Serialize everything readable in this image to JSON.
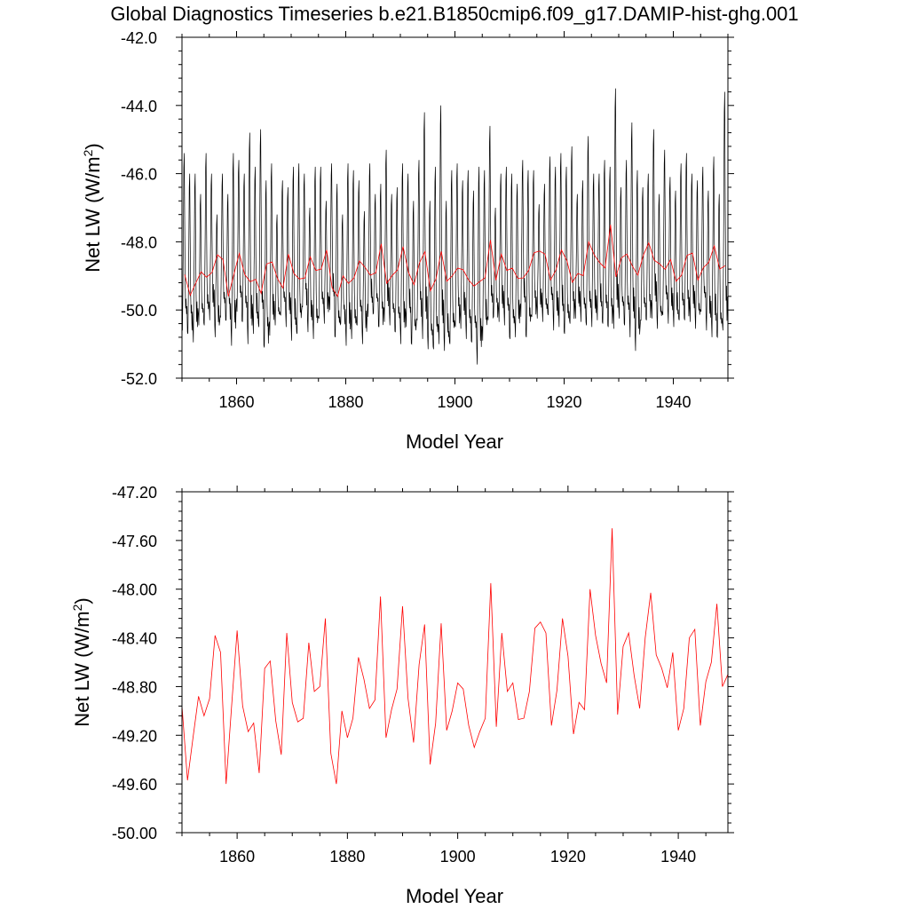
{
  "figure": {
    "title": "Global Diagnostics Timeseries b.e21.B1850cmip6.f09_g17.DAMIP-hist-ghg.001"
  },
  "colors": {
    "monthly_line": "#000000",
    "annual_line": "#ff0000",
    "axes": "#000000"
  },
  "chart_data": [
    {
      "type": "line",
      "ylabel_main": "Net LW (W/m",
      "ylabel_sup": "2",
      "ylabel_end": ")",
      "xlabel": "Model Year",
      "xlim": [
        1850,
        1950
      ],
      "ylim": [
        -52.0,
        -42.0
      ],
      "xticks": [
        1860,
        1880,
        1900,
        1920,
        1940
      ],
      "xtick_labels": [
        "1860",
        "1880",
        "1900",
        "1920",
        "1940"
      ],
      "yticks": [
        -52.0,
        -50.0,
        -48.0,
        -46.0,
        -44.0,
        -42.0
      ],
      "ytick_labels": [
        "-52.0",
        "-50.0",
        "-48.0",
        "-46.0",
        "-44.0",
        "-42.0"
      ],
      "series": [
        {
          "kind": "monthly",
          "color": "#000000",
          "description_of_peaks_years": [
            1850,
            1851,
            1852,
            1853,
            1854,
            1855,
            1856,
            1857,
            1858,
            1859,
            1860,
            1861,
            1862,
            1863,
            1864,
            1865,
            1866,
            1867,
            1868,
            1869,
            1870,
            1871,
            1872,
            1873,
            1874,
            1875,
            1876,
            1877,
            1878,
            1879,
            1880,
            1881,
            1882,
            1883,
            1884,
            1885,
            1886,
            1887,
            1888,
            1889,
            1890,
            1891,
            1892,
            1893,
            1894,
            1895,
            1896,
            1897,
            1898,
            1899,
            1900,
            1901,
            1902,
            1903,
            1904,
            1905,
            1906,
            1907,
            1908,
            1909,
            1910,
            1911,
            1912,
            1913,
            1914,
            1915,
            1916,
            1917,
            1918,
            1919,
            1920,
            1921,
            1922,
            1923,
            1924,
            1925,
            1926,
            1927,
            1928,
            1929,
            1930,
            1931,
            1932,
            1933,
            1934,
            1935,
            1936,
            1937,
            1938,
            1939,
            1940,
            1941,
            1942,
            1943,
            1944,
            1945,
            1946,
            1947,
            1948,
            1949
          ],
          "annual_max": [
            -45.4,
            -46.0,
            -46.0,
            -46.6,
            -45.4,
            -46.0,
            -47.2,
            -46.0,
            -46.6,
            -45.4,
            -45.6,
            -46.0,
            -44.8,
            -45.8,
            -44.7,
            -46.2,
            -45.7,
            -47.2,
            -46.2,
            -46.4,
            -45.8,
            -45.7,
            -46.0,
            -47.0,
            -45.8,
            -45.8,
            -46.8,
            -45.7,
            -46.3,
            -47.2,
            -45.7,
            -45.9,
            -46.2,
            -47.1,
            -45.7,
            -46.6,
            -46.3,
            -45.3,
            -46.6,
            -46.4,
            -45.7,
            -46.0,
            -46.8,
            -45.6,
            -44.2,
            -46.8,
            -45.8,
            -44.0,
            -46.8,
            -45.9,
            -45.7,
            -46.2,
            -45.9,
            -46.5,
            -45.8,
            -45.9,
            -44.6,
            -47.0,
            -46.0,
            -45.8,
            -46.0,
            -46.3,
            -45.6,
            -45.9,
            -45.9,
            -46.9,
            -46.3,
            -45.5,
            -45.8,
            -45.4,
            -45.8,
            -45.2,
            -46.6,
            -46.2,
            -44.9,
            -46.0,
            -46.0,
            -45.6,
            -45.8,
            -43.5,
            -46.4,
            -45.6,
            -44.5,
            -45.9,
            -46.4,
            -46.0,
            -44.7,
            -46.6,
            -45.3,
            -46.1,
            -46.5,
            -45.7,
            -45.4,
            -46.0,
            -46.2,
            -45.8,
            -46.5,
            -45.5,
            -46.6,
            -43.6
          ],
          "annual_min": [
            -50.8,
            -51.0,
            -51.0,
            -50.6,
            -50.7,
            -50.3,
            -50.9,
            -50.4,
            -50.6,
            -51.1,
            -50.2,
            -50.6,
            -51.0,
            -50.8,
            -50.7,
            -51.4,
            -50.8,
            -50.6,
            -50.4,
            -50.5,
            -51.0,
            -50.9,
            -50.2,
            -50.7,
            -51.0,
            -50.5,
            -50.4,
            -50.1,
            -51.0,
            -50.7,
            -51.1,
            -51.0,
            -50.7,
            -51.0,
            -50.3,
            -50.3,
            -50.8,
            -50.4,
            -50.6,
            -50.9,
            -51.0,
            -50.6,
            -51.2,
            -50.6,
            -50.9,
            -51.3,
            -51.4,
            -51.0,
            -51.3,
            -51.2,
            -50.8,
            -50.6,
            -51.0,
            -51.2,
            -51.6,
            -51.0,
            -50.5,
            -50.5,
            -50.4,
            -50.6,
            -51.1,
            -50.8,
            -50.3,
            -51.0,
            -50.5,
            -50.3,
            -50.5,
            -50.4,
            -50.6,
            -50.6,
            -50.9,
            -50.7,
            -50.3,
            -50.5,
            -50.7,
            -50.5,
            -50.4,
            -50.6,
            -50.8,
            -50.6,
            -50.4,
            -50.7,
            -50.8,
            -51.3,
            -50.5,
            -50.6,
            -50.3,
            -50.7,
            -50.4,
            -50.4,
            -50.6,
            -50.5,
            -50.6,
            -50.4,
            -50.7,
            -50.3,
            -50.6,
            -50.9,
            -51.0,
            -50.9
          ]
        },
        {
          "kind": "annual",
          "color": "#ff0000",
          "x": [
            1850,
            1851,
            1852,
            1853,
            1854,
            1855,
            1856,
            1857,
            1858,
            1859,
            1860,
            1861,
            1862,
            1863,
            1864,
            1865,
            1866,
            1867,
            1868,
            1869,
            1870,
            1871,
            1872,
            1873,
            1874,
            1875,
            1876,
            1877,
            1878,
            1879,
            1880,
            1881,
            1882,
            1883,
            1884,
            1885,
            1886,
            1887,
            1888,
            1889,
            1890,
            1891,
            1892,
            1893,
            1894,
            1895,
            1896,
            1897,
            1898,
            1899,
            1900,
            1901,
            1902,
            1903,
            1904,
            1905,
            1906,
            1907,
            1908,
            1909,
            1910,
            1911,
            1912,
            1913,
            1914,
            1915,
            1916,
            1917,
            1918,
            1919,
            1920,
            1921,
            1922,
            1923,
            1924,
            1925,
            1926,
            1927,
            1928,
            1929,
            1930,
            1931,
            1932,
            1933,
            1934,
            1935,
            1936,
            1937,
            1938,
            1939,
            1940,
            1941,
            1942,
            1943,
            1944,
            1945,
            1946,
            1947,
            1948,
            1949
          ],
          "y": [
            -48.96,
            -49.57,
            -49.22,
            -48.88,
            -49.04,
            -48.9,
            -48.38,
            -48.52,
            -49.6,
            -48.96,
            -48.34,
            -48.96,
            -49.17,
            -49.1,
            -49.51,
            -48.65,
            -48.59,
            -49.08,
            -49.36,
            -48.36,
            -48.93,
            -49.09,
            -49.06,
            -48.44,
            -48.84,
            -48.8,
            -48.24,
            -49.35,
            -49.6,
            -49.0,
            -49.22,
            -49.06,
            -48.56,
            -48.74,
            -48.98,
            -48.91,
            -48.06,
            -49.22,
            -48.99,
            -48.82,
            -48.14,
            -48.9,
            -49.26,
            -48.62,
            -48.29,
            -49.44,
            -49.1,
            -48.28,
            -49.16,
            -49.0,
            -48.77,
            -48.82,
            -49.12,
            -49.3,
            -49.17,
            -49.06,
            -47.95,
            -49.13,
            -48.36,
            -48.84,
            -48.77,
            -49.07,
            -49.06,
            -48.84,
            -48.32,
            -48.27,
            -48.36,
            -49.12,
            -48.83,
            -48.24,
            -48.55,
            -49.19,
            -48.93,
            -48.99,
            -48.0,
            -48.38,
            -48.61,
            -48.77,
            -47.5,
            -49.03,
            -48.47,
            -48.36,
            -48.71,
            -48.98,
            -48.4,
            -48.03,
            -48.54,
            -48.65,
            -48.81,
            -48.52,
            -49.16,
            -48.98,
            -48.4,
            -48.33,
            -49.12,
            -48.76,
            -48.6,
            -48.12,
            -48.8,
            -48.7
          ]
        }
      ]
    },
    {
      "type": "line",
      "ylabel_main": "Net LW (W/m",
      "ylabel_sup": "2",
      "ylabel_end": ")",
      "xlabel": "Model Year",
      "xlim": [
        1850,
        1949
      ],
      "ylim": [
        -50.0,
        -47.2
      ],
      "xticks": [
        1860,
        1880,
        1900,
        1920,
        1940
      ],
      "xtick_labels": [
        "1860",
        "1880",
        "1900",
        "1920",
        "1940"
      ],
      "yticks": [
        -50.0,
        -49.6,
        -49.2,
        -48.8,
        -48.4,
        -48.0,
        -47.6,
        -47.2
      ],
      "ytick_labels": [
        "-50.00",
        "-49.60",
        "-49.20",
        "-48.80",
        "-48.40",
        "-48.00",
        "-47.60",
        "-47.20"
      ],
      "series": [
        {
          "kind": "annual",
          "color": "#ff0000",
          "ref": "same-as-top-annual"
        }
      ]
    }
  ]
}
